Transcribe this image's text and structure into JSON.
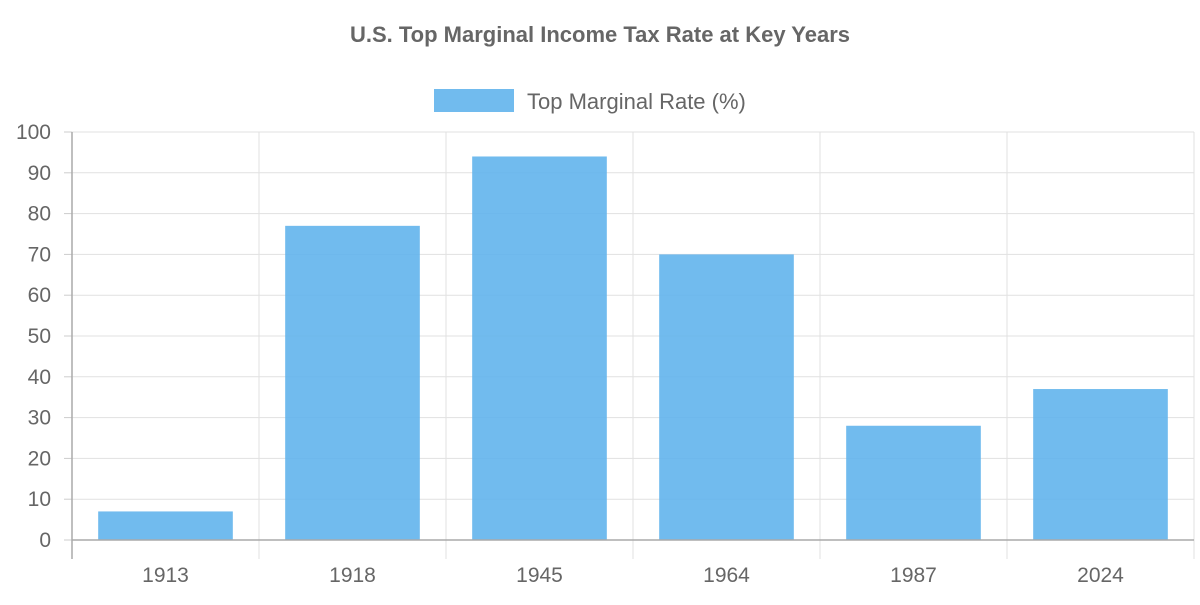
{
  "chart_data": {
    "type": "bar",
    "title": "U.S. Top Marginal Income Tax Rate at Key Years",
    "xlabel": "",
    "ylabel": "",
    "categories": [
      "1913",
      "1918",
      "1945",
      "1964",
      "1987",
      "2024"
    ],
    "series": [
      {
        "name": "Top Marginal Rate (%)",
        "values": [
          7,
          77,
          94,
          70,
          28,
          37
        ],
        "color": "#5DB2EC"
      }
    ],
    "ylim": [
      0,
      100
    ],
    "yticks": [
      0,
      10,
      20,
      30,
      40,
      50,
      60,
      70,
      80,
      90,
      100
    ],
    "grid": true,
    "legend": "top-center"
  }
}
